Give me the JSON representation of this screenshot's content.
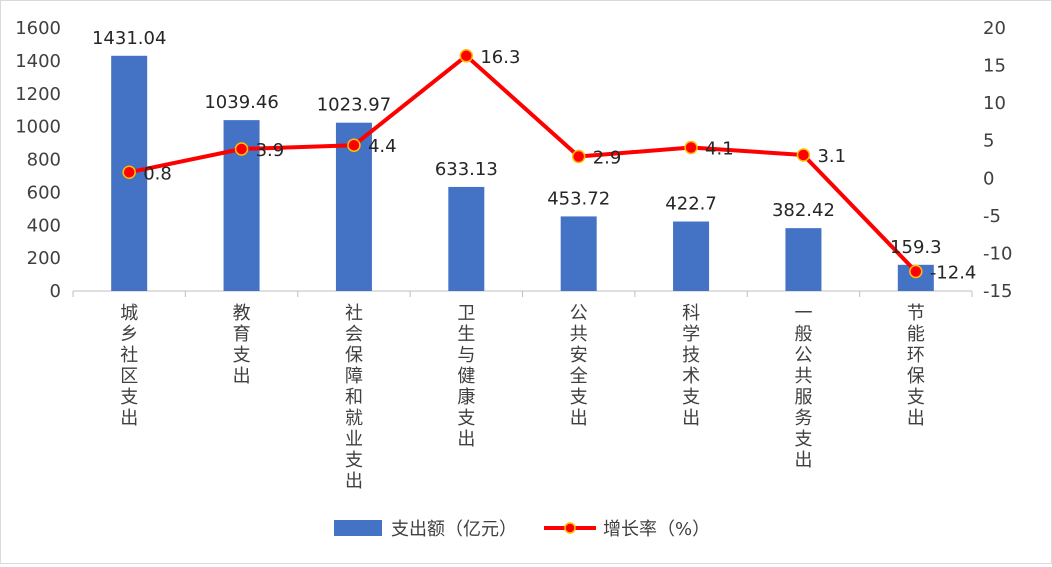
{
  "chart_data": {
    "type": "bar",
    "categories": [
      "城乡社区支出",
      "教育支出",
      "社会保障和就业支出",
      "卫生与健康支出",
      "公共安全支出",
      "科学技术支出",
      "一般公共服务支出",
      "节能环保支出"
    ],
    "series": [
      {
        "name": "支出额（亿元）",
        "type": "bar",
        "axis": "left",
        "color": "#4472C4",
        "values": [
          1431.04,
          1039.46,
          1023.97,
          633.13,
          453.72,
          422.7,
          382.42,
          159.3
        ]
      },
      {
        "name": "增长率（%）",
        "type": "line",
        "axis": "right",
        "color": "#FF0000",
        "values": [
          0.8,
          3.9,
          4.4,
          16.3,
          2.9,
          4.1,
          3.1,
          -12.4
        ]
      }
    ],
    "bar_labels": [
      "1431.04",
      "1039.46",
      "1023.97",
      "633.13",
      "453.72",
      "422.7",
      "382.42",
      "159.3"
    ],
    "line_labels": [
      "0.8",
      "3.9",
      "4.4",
      "16.3",
      "2.9",
      "4.1",
      "3.1",
      "-12.4"
    ],
    "y_left": {
      "lim": [
        0,
        1600
      ],
      "ticks": [
        "0",
        "200",
        "400",
        "600",
        "800",
        "1000",
        "1200",
        "1400",
        "1600"
      ]
    },
    "y_right": {
      "lim": [
        -15,
        20
      ],
      "ticks": [
        "-15",
        "-10",
        "-5",
        "0",
        "5",
        "10",
        "15",
        "20"
      ]
    },
    "grid": false,
    "legend": "bottom",
    "colors": {
      "bar": "#4472C4",
      "line": "#FF0000",
      "marker_edge": "#FFC000"
    }
  }
}
